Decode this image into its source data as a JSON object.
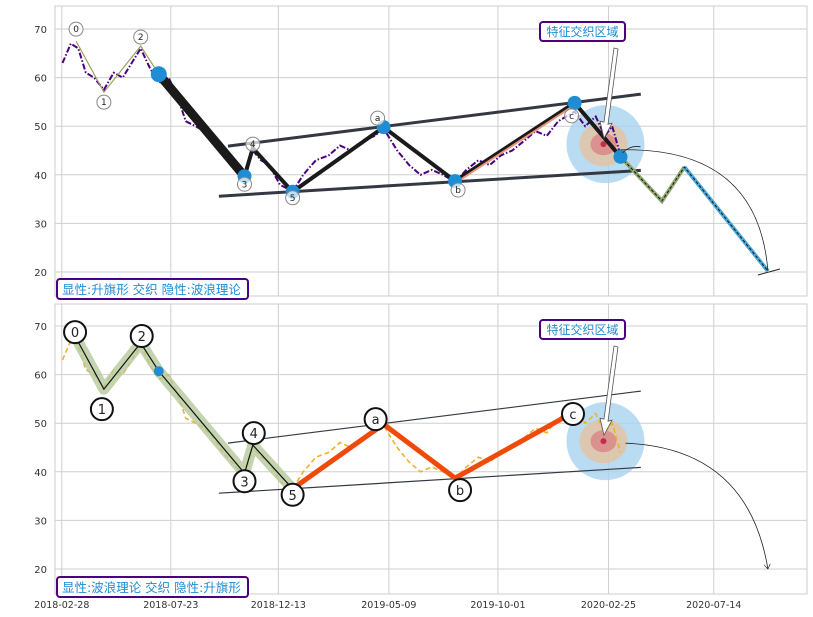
{
  "chart_data": [
    {
      "type": "line",
      "panel": "top",
      "legend_box": "显性:升旗形 交织 隐性:波浪理论",
      "annotation": "特征交织区域",
      "ylim": [
        15,
        75
      ],
      "yticks": [
        20,
        30,
        40,
        50,
        60,
        70
      ],
      "grid": true,
      "price_style": "purple dash-dot",
      "colors": {
        "price": "#4b0082",
        "wave": "#1a1a1a",
        "pivot": "#1f8dd6",
        "channel": "#333842",
        "proj1": "#8fa870",
        "proj2": "#4aa8d8",
        "box": "#4b0082",
        "text": "#1f8dd6"
      }
    },
    {
      "type": "line",
      "panel": "bottom",
      "legend_box": "显性:波浪理论 交织 隐性:升旗形",
      "annotation": "特征交织区域",
      "ylim": [
        15,
        75
      ],
      "yticks": [
        20,
        30,
        40,
        50,
        60,
        70
      ],
      "grid": true,
      "price_style": "orange dashed",
      "colors": {
        "price": "#f0b030",
        "wave_band": "#b5c99a",
        "abc": "#f04a0a",
        "channel": "#333842"
      }
    }
  ],
  "xlim": [
    "2018-02-19",
    "2020-11-15"
  ],
  "xticks": [
    "2018-02-28",
    "2018-07-23",
    "2018-12-13",
    "2019-05-09",
    "2019-10-01",
    "2020-02-25",
    "2020-07-14"
  ],
  "waves": [
    {
      "label": "0",
      "date": "2018-03-19",
      "value": 67.5
    },
    {
      "label": "1",
      "date": "2018-04-25",
      "value": 57
    },
    {
      "label": "2",
      "date": "2018-06-13",
      "value": 66.5
    },
    {
      "label": "",
      "date": "2018-07-07",
      "value": 60.7
    },
    {
      "label": "3",
      "date": "2018-10-29",
      "value": 39.7
    },
    {
      "label": "4",
      "date": "2018-11-09",
      "value": 45.5
    },
    {
      "label": "5",
      "date": "2019-01-01",
      "value": 36.5
    },
    {
      "label": "a",
      "date": "2019-05-02",
      "value": 49.8
    },
    {
      "label": "b",
      "date": "2019-08-05",
      "value": 38.7
    },
    {
      "label": "c",
      "date": "2020-01-11",
      "value": 54.8
    },
    {
      "label": "",
      "date": "2020-03-12",
      "value": 43.7
    }
  ],
  "projection": [
    {
      "date": "2020-03-12",
      "value": 43.7
    },
    {
      "date": "2020-05-06",
      "value": 34.6
    },
    {
      "date": "2020-06-05",
      "value": 41.6
    },
    {
      "date": "2020-09-24",
      "value": 20.2
    }
  ],
  "channel": {
    "upper": [
      [
        "2018-10-07",
        45.9
      ],
      [
        "2020-04-08",
        56.6
      ]
    ],
    "lower": [
      [
        "2018-09-25",
        35.6
      ],
      [
        "2020-04-08",
        40.9
      ]
    ]
  },
  "focus_region": {
    "date": "2020-02-21",
    "value": 46.3
  },
  "price": [
    [
      "2018-03-01",
      63
    ],
    [
      "2018-03-12",
      67
    ],
    [
      "2018-03-22",
      66
    ],
    [
      "2018-04-01",
      61
    ],
    [
      "2018-04-12",
      60
    ],
    [
      "2018-04-25",
      57.5
    ],
    [
      "2018-05-08",
      61
    ],
    [
      "2018-05-20",
      60
    ],
    [
      "2018-06-01",
      63
    ],
    [
      "2018-06-13",
      66
    ],
    [
      "2018-06-25",
      62
    ],
    [
      "2018-07-07",
      59
    ],
    [
      "2018-07-20",
      60
    ],
    [
      "2018-08-01",
      56
    ],
    [
      "2018-08-12",
      51
    ],
    [
      "2018-08-25",
      50
    ],
    [
      "2018-09-05",
      49
    ],
    [
      "2018-09-18",
      47
    ],
    [
      "2018-09-30",
      44
    ],
    [
      "2018-10-12",
      42
    ],
    [
      "2018-10-29",
      39
    ],
    [
      "2018-11-09",
      45
    ],
    [
      "2018-11-20",
      43
    ],
    [
      "2018-12-01",
      42
    ],
    [
      "2018-12-15",
      38
    ],
    [
      "2019-01-01",
      36.5
    ],
    [
      "2019-01-15",
      40
    ],
    [
      "2019-02-01",
      43
    ],
    [
      "2019-02-18",
      44
    ],
    [
      "2019-03-05",
      46
    ],
    [
      "2019-03-20",
      45
    ],
    [
      "2019-04-05",
      47
    ],
    [
      "2019-04-20",
      48
    ],
    [
      "2019-05-02",
      49.5
    ],
    [
      "2019-05-20",
      45
    ],
    [
      "2019-06-05",
      42
    ],
    [
      "2019-06-20",
      40
    ],
    [
      "2019-07-05",
      41
    ],
    [
      "2019-07-20",
      40
    ],
    [
      "2019-08-05",
      38.5
    ],
    [
      "2019-08-20",
      41
    ],
    [
      "2019-09-05",
      43
    ],
    [
      "2019-09-20",
      42
    ],
    [
      "2019-10-05",
      44
    ],
    [
      "2019-10-20",
      45
    ],
    [
      "2019-11-05",
      47
    ],
    [
      "2019-11-20",
      49
    ],
    [
      "2019-12-05",
      48
    ],
    [
      "2019-12-20",
      51
    ],
    [
      "2020-01-11",
      53
    ],
    [
      "2020-01-25",
      50
    ],
    [
      "2020-02-08",
      52
    ],
    [
      "2020-02-20",
      48
    ],
    [
      "2020-03-01",
      50
    ],
    [
      "2020-03-12",
      44
    ]
  ]
}
